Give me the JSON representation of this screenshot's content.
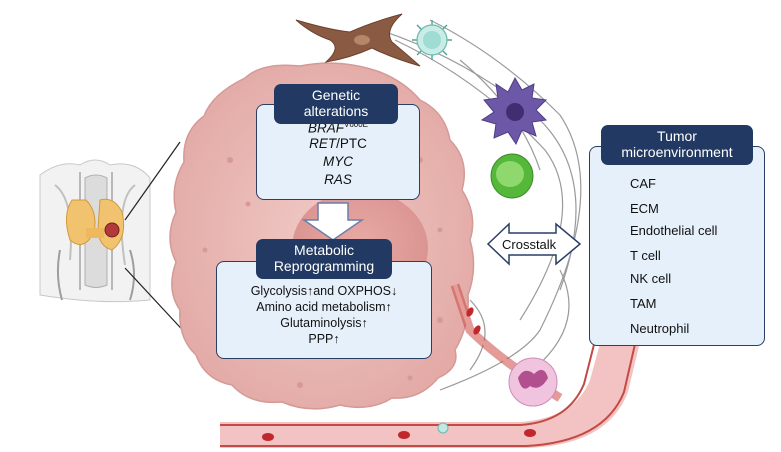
{
  "genetic": {
    "title_line1": "Genetic",
    "title_line2": "alterations",
    "braf": "BRAF",
    "braf_sup": "V600E",
    "ret": "RET",
    "ret_suffix": "/PTC",
    "myc": "MYC",
    "ras": "RAS"
  },
  "metabolic": {
    "title_line1": "Metabolic",
    "title_line2": "Reprogramming",
    "lines": [
      "Glycolysis↑and OXPHOS↓",
      "Amino acid metabolism↑",
      "Glutaminolysis↑",
      "PPP↑"
    ]
  },
  "crosstalk": "Crosstalk",
  "tme": {
    "title_line1": "Tumor",
    "title_line2": "microenvironment",
    "legend": [
      {
        "label": "CAF",
        "icon": "caf-icon"
      },
      {
        "label": "ECM",
        "icon": "ecm-icon"
      },
      {
        "label": "Endothelial cell",
        "icon": "endothelial-cell-icon"
      },
      {
        "label": "T cell",
        "icon": "t-cell-icon"
      },
      {
        "label": "NK cell",
        "icon": "nk-cell-icon"
      },
      {
        "label": "TAM",
        "icon": "tam-icon"
      },
      {
        "label": "Neutrophil",
        "icon": "neutrophil-icon"
      }
    ]
  },
  "colors": {
    "header_navy": "#223a63",
    "box_fill": "#e6f0fa",
    "tumor_cell": "#e8b7b3",
    "vessel": "#b5413a",
    "t_cell": "#9fdcd3",
    "nk_cell": "#55b83a",
    "tam": "#6d58a8",
    "neutrophil": "#e2a2c9",
    "caf": "#8b5a42"
  }
}
